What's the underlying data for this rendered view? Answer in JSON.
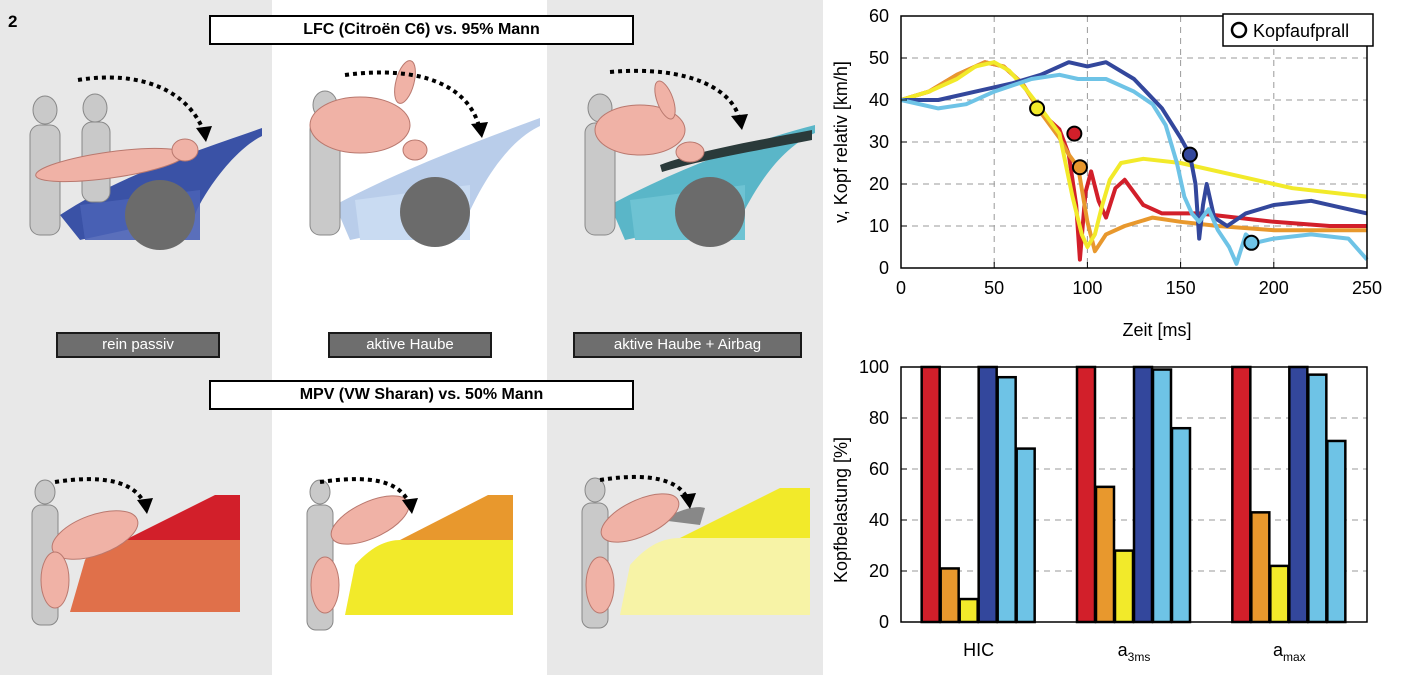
{
  "figure_number": "2",
  "left": {
    "title_top": "LFC (Citroën C6) vs. 95% Mann",
    "title_bottom": "MPV (VW Sharan) vs. 50% Mann",
    "labels": [
      "rein passiv",
      "aktive Haube",
      "aktive Haube + Airbag"
    ]
  },
  "colors": {
    "red": "#d21f2a",
    "orange": "#e8982d",
    "yellow": "#f2ea2a",
    "darkblue": "#33479c",
    "lightblue": "#6ec3e6",
    "panel_gray": "#e8e8e8",
    "hood_dark": "#3a52a6",
    "hood_light": "#b9cdea",
    "hood_teal": "#5ab6c8"
  },
  "chart_data": [
    {
      "type": "line",
      "xlabel": "Zeit [ms]",
      "ylabel": "v, Kopf relativ [km/h]",
      "xlim": [
        0,
        250
      ],
      "ylim": [
        0,
        60
      ],
      "xticks": [
        0,
        50,
        100,
        150,
        200,
        250
      ],
      "yticks": [
        0,
        10,
        20,
        30,
        40,
        50,
        60
      ],
      "grid": true,
      "legend": {
        "label": "Kopfaufprall",
        "placement": "top-right",
        "marker": "circle"
      },
      "series": [
        {
          "color_key": "red",
          "points": [
            [
              0,
              40
            ],
            [
              15,
              42
            ],
            [
              30,
              46
            ],
            [
              45,
              49
            ],
            [
              55,
              48
            ],
            [
              65,
              44
            ],
            [
              75,
              37
            ],
            [
              85,
              33
            ],
            [
              90,
              27
            ],
            [
              94,
              15
            ],
            [
              96,
              2
            ],
            [
              99,
              18
            ],
            [
              102,
              23
            ],
            [
              106,
              16
            ],
            [
              110,
              12
            ],
            [
              115,
              19
            ],
            [
              120,
              21
            ],
            [
              130,
              15
            ],
            [
              140,
              13
            ],
            [
              160,
              13
            ],
            [
              180,
              12
            ],
            [
              200,
              11
            ],
            [
              230,
              10
            ],
            [
              250,
              10
            ]
          ],
          "impact": [
            93,
            32
          ]
        },
        {
          "color_key": "orange",
          "points": [
            [
              0,
              40
            ],
            [
              15,
              42
            ],
            [
              30,
              46
            ],
            [
              45,
              49
            ],
            [
              55,
              48
            ],
            [
              65,
              44
            ],
            [
              75,
              37
            ],
            [
              85,
              31
            ],
            [
              90,
              27
            ],
            [
              95,
              24
            ],
            [
              100,
              11
            ],
            [
              104,
              4
            ],
            [
              110,
              8
            ],
            [
              120,
              10
            ],
            [
              135,
              12
            ],
            [
              150,
              11
            ],
            [
              170,
              10
            ],
            [
              200,
              9
            ],
            [
              250,
              9
            ]
          ],
          "impact": [
            96,
            24
          ]
        },
        {
          "color_key": "yellow",
          "points": [
            [
              0,
              40
            ],
            [
              15,
              42
            ],
            [
              30,
              45
            ],
            [
              40,
              48
            ],
            [
              50,
              49
            ],
            [
              58,
              47
            ],
            [
              68,
              42
            ],
            [
              75,
              38
            ],
            [
              85,
              32
            ],
            [
              92,
              17
            ],
            [
              97,
              8
            ],
            [
              100,
              5
            ],
            [
              104,
              8
            ],
            [
              108,
              15
            ],
            [
              112,
              21
            ],
            [
              118,
              25
            ],
            [
              130,
              26
            ],
            [
              150,
              25
            ],
            [
              180,
              22
            ],
            [
              210,
              19
            ],
            [
              250,
              17
            ]
          ],
          "impact": [
            73,
            38
          ]
        },
        {
          "color_key": "darkblue",
          "points": [
            [
              0,
              40
            ],
            [
              20,
              40
            ],
            [
              40,
              42
            ],
            [
              60,
              44
            ],
            [
              75,
              46
            ],
            [
              90,
              49
            ],
            [
              100,
              48
            ],
            [
              110,
              49
            ],
            [
              125,
              45
            ],
            [
              140,
              38
            ],
            [
              150,
              31
            ],
            [
              155,
              27
            ],
            [
              158,
              20
            ],
            [
              160,
              7
            ],
            [
              162,
              15
            ],
            [
              164,
              20
            ],
            [
              168,
              12
            ],
            [
              175,
              10
            ],
            [
              185,
              13
            ],
            [
              200,
              15
            ],
            [
              220,
              16
            ],
            [
              250,
              13
            ]
          ],
          "impact": [
            155,
            27
          ]
        },
        {
          "color_key": "lightblue",
          "points": [
            [
              0,
              40
            ],
            [
              20,
              38
            ],
            [
              35,
              39
            ],
            [
              50,
              42
            ],
            [
              70,
              45
            ],
            [
              85,
              46
            ],
            [
              95,
              45
            ],
            [
              110,
              45
            ],
            [
              125,
              42
            ],
            [
              135,
              39
            ],
            [
              142,
              34
            ],
            [
              148,
              25
            ],
            [
              152,
              17
            ],
            [
              156,
              13
            ],
            [
              160,
              11
            ],
            [
              165,
              14
            ],
            [
              170,
              9
            ],
            [
              176,
              5
            ],
            [
              180,
              1
            ],
            [
              185,
              8
            ],
            [
              190,
              6
            ],
            [
              200,
              7
            ],
            [
              220,
              8
            ],
            [
              240,
              7
            ],
            [
              250,
              2
            ]
          ],
          "impact": [
            188,
            6
          ]
        }
      ]
    },
    {
      "type": "bar",
      "ylabel": "Kopfbelastung [%]",
      "ylim": [
        0,
        100
      ],
      "yticks": [
        0,
        20,
        40,
        60,
        80,
        100
      ],
      "grid": true,
      "categories": [
        {
          "main": "HIC",
          "sub": ""
        },
        {
          "main": "a",
          "sub": "3ms"
        },
        {
          "main": "a",
          "sub": "max"
        }
      ],
      "series": [
        {
          "color_key": "red",
          "values": [
            100,
            100,
            100
          ]
        },
        {
          "color_key": "orange",
          "values": [
            21,
            53,
            43
          ]
        },
        {
          "color_key": "yellow",
          "values": [
            9,
            28,
            22
          ]
        },
        {
          "color_key": "darkblue",
          "values": [
            100,
            100,
            100
          ]
        },
        {
          "color_key": "lightblue",
          "values": [
            96,
            99,
            97
          ]
        },
        {
          "color_key": "lightblue",
          "values": [
            68,
            76,
            71
          ]
        }
      ]
    }
  ]
}
